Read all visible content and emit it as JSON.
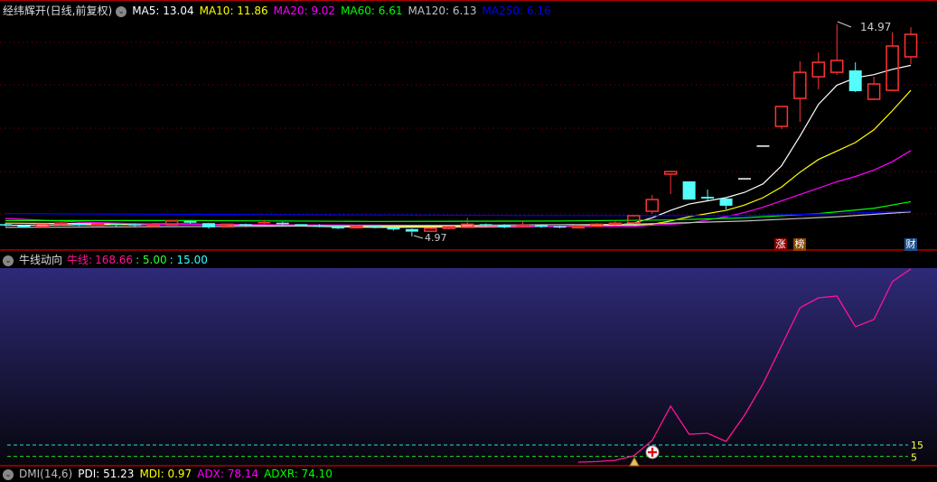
{
  "main": {
    "title": "经纬辉开(日线,前复权)",
    "ma_labels": [
      {
        "text": "MA5: 13.04",
        "color": "#ffffff"
      },
      {
        "text": "MA10: 11.86",
        "color": "#ffff00"
      },
      {
        "text": "MA20: 9.02",
        "color": "#ff00ff"
      },
      {
        "text": "MA60: 6.61",
        "color": "#00ff00"
      },
      {
        "text": "MA120: 6.13",
        "color": "#c0c0c0"
      },
      {
        "text": "MA250: 6.16",
        "color": "#0000ff"
      }
    ],
    "high_label": "14.97",
    "low_label": "4.97",
    "tags": [
      {
        "text": "涨",
        "color": "#8b0000"
      },
      {
        "text": "榜",
        "color": "#8b4500"
      },
      {
        "text": "财",
        "color": "#1c4f8a"
      }
    ]
  },
  "chart": {
    "up_color": "#ff3333",
    "down_color": "#54fcfc",
    "candles": [
      [
        5.52,
        5.5,
        5.6,
        5.45
      ],
      [
        5.48,
        5.4,
        5.52,
        5.38
      ],
      [
        5.45,
        5.55,
        5.58,
        5.42
      ],
      [
        5.55,
        5.6,
        5.65,
        5.5
      ],
      [
        5.58,
        5.5,
        5.62,
        5.46
      ],
      [
        5.5,
        5.56,
        5.6,
        5.47
      ],
      [
        5.55,
        5.5,
        5.58,
        5.45
      ],
      [
        5.52,
        5.48,
        5.58,
        5.44
      ],
      [
        5.46,
        5.52,
        5.55,
        5.43
      ],
      [
        5.52,
        5.7,
        5.75,
        5.5
      ],
      [
        5.7,
        5.62,
        5.72,
        5.58
      ],
      [
        5.6,
        5.4,
        5.62,
        5.35
      ],
      [
        5.42,
        5.55,
        5.58,
        5.4
      ],
      [
        5.55,
        5.48,
        5.58,
        5.45
      ],
      [
        5.6,
        5.62,
        5.75,
        5.55
      ],
      [
        5.62,
        5.55,
        5.66,
        5.5
      ],
      [
        5.52,
        5.48,
        5.55,
        5.45
      ],
      [
        5.5,
        5.45,
        5.55,
        5.4
      ],
      [
        5.45,
        5.35,
        5.48,
        5.32
      ],
      [
        5.38,
        5.45,
        5.5,
        5.35
      ],
      [
        5.45,
        5.4,
        5.48,
        5.36
      ],
      [
        5.4,
        5.3,
        5.42,
        5.25
      ],
      [
        5.32,
        5.2,
        5.35,
        4.97
      ],
      [
        5.22,
        5.35,
        5.4,
        5.18
      ],
      [
        5.35,
        5.42,
        5.45,
        5.3
      ],
      [
        5.4,
        5.55,
        5.85,
        5.38
      ],
      [
        5.55,
        5.5,
        5.58,
        5.45
      ],
      [
        5.52,
        5.4,
        5.55,
        5.36
      ],
      [
        5.42,
        5.5,
        5.7,
        5.4
      ],
      [
        5.5,
        5.42,
        5.55,
        5.38
      ],
      [
        5.42,
        5.38,
        5.48,
        5.35
      ],
      [
        5.38,
        5.45,
        5.5,
        5.35
      ],
      [
        5.45,
        5.55,
        5.6,
        5.42
      ],
      [
        5.55,
        5.6,
        5.7,
        5.5
      ],
      [
        5.61,
        5.95,
        5.98,
        5.6
      ],
      [
        6.16,
        6.71,
        6.93,
        6.03
      ],
      [
        7.91,
        8.03,
        8.03,
        6.97
      ],
      [
        7.57,
        6.71,
        7.57,
        6.71
      ],
      [
        6.84,
        6.76,
        7.18,
        6.67
      ],
      [
        6.76,
        6.42,
        6.76,
        6.25
      ],
      [
        7.69,
        7.69,
        7.69,
        7.69
      ],
      [
        9.23,
        9.23,
        9.23,
        9.23
      ],
      [
        10.16,
        11.1,
        11.1,
        10.03
      ],
      [
        11.48,
        12.71,
        13.23,
        10.37
      ],
      [
        12.5,
        13.18,
        13.65,
        11.91
      ],
      [
        12.71,
        13.27,
        14.97,
        12.59
      ],
      [
        12.8,
        11.82,
        13.18,
        11.78
      ],
      [
        11.44,
        12.16,
        12.5,
        11.4
      ],
      [
        11.86,
        13.95,
        14.59,
        11.82
      ],
      [
        13.44,
        14.5,
        14.84,
        13.1
      ]
    ],
    "ma": [
      {
        "color": "#ffffff",
        "points": {
          "0": 5.5,
          "10": 5.55,
          "20": 5.4,
          "30": 5.45,
          "33": 5.5,
          "34": 5.6,
          "35": 5.85,
          "36": 6.2,
          "37": 6.5,
          "38": 6.65,
          "39": 6.8,
          "40": 7.05,
          "41": 7.45,
          "42": 8.3,
          "43": 9.7,
          "44": 11.2,
          "45": 12.1,
          "46": 12.45,
          "47": 12.6,
          "48": 12.85,
          "49": 13.04
        }
      },
      {
        "color": "#ffff00",
        "points": {
          "0": 5.6,
          "10": 5.55,
          "20": 5.45,
          "30": 5.45,
          "34": 5.5,
          "35": 5.55,
          "36": 5.7,
          "37": 5.9,
          "38": 6.05,
          "39": 6.2,
          "40": 6.45,
          "41": 6.8,
          "42": 7.3,
          "43": 8.0,
          "44": 8.6,
          "45": 9.0,
          "46": 9.4,
          "47": 10.0,
          "48": 10.9,
          "49": 11.86
        }
      },
      {
        "color": "#ff00ff",
        "points": {
          "0": 5.82,
          "4": 5.65,
          "8": 5.55,
          "15": 5.52,
          "22": 5.5,
          "30": 5.45,
          "34": 5.45,
          "35": 5.5,
          "36": 5.55,
          "37": 5.6,
          "38": 5.75,
          "39": 5.9,
          "40": 6.1,
          "41": 6.35,
          "42": 6.65,
          "43": 6.95,
          "44": 7.25,
          "45": 7.55,
          "46": 7.8,
          "47": 8.1,
          "48": 8.5,
          "49": 9.02
        }
      },
      {
        "color": "#00ff00",
        "points": {
          "0": 5.72,
          "10": 5.72,
          "20": 5.68,
          "30": 5.7,
          "36": 5.75,
          "40": 5.85,
          "44": 6.05,
          "47": 6.3,
          "49": 6.61
        }
      },
      {
        "color": "#c0c0c0",
        "points": {
          "0": 5.4,
          "14": 5.45,
          "25": 5.5,
          "34": 5.55,
          "40": 5.7,
          "45": 5.9,
          "49": 6.13
        }
      },
      {
        "color": "#0000ff",
        "points": {
          "0": 6.05,
          "14": 6.0,
          "28": 5.96,
          "40": 5.95,
          "45": 6.05,
          "49": 6.16
        }
      }
    ]
  },
  "indicator": {
    "name": "牛线动向",
    "line_label": "牛线:",
    "line_value": "168.66",
    "level1": ": 5.00",
    "level2": ": 15.00",
    "axis_15": "15",
    "axis_5": "5",
    "line_color": "#ff1493",
    "values": [
      0,
      0,
      0,
      0,
      0,
      0,
      0,
      0,
      0,
      0,
      0,
      0,
      0,
      0,
      0,
      0,
      0,
      0,
      0,
      0,
      0,
      0,
      0,
      0,
      0,
      0,
      0,
      0,
      0,
      0,
      0,
      0,
      0.5,
      1.6,
      5.5,
      18.9,
      48.9,
      24.4,
      25.2,
      18.1,
      41.0,
      68.5,
      101.6,
      134.8,
      143.4,
      145.0,
      118.2,
      124.5,
      157.6,
      168.66
    ]
  },
  "bottom": {
    "labels": [
      {
        "text": "DMI(14,6)",
        "color": "#bbbbbb"
      },
      {
        "text": "PDI: 51.23",
        "color": "#ffffff"
      },
      {
        "text": "MDI: 0.97",
        "color": "#ffff00"
      },
      {
        "text": "ADX: 78.14",
        "color": "#ff00ff"
      },
      {
        "text": "ADXR: 74.10",
        "color": "#00ff00"
      }
    ]
  }
}
